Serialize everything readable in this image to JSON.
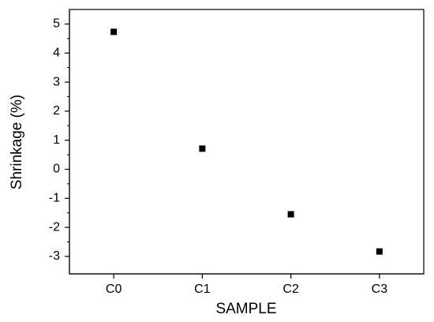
{
  "chart_data": {
    "type": "scatter",
    "x_label": "SAMPLE",
    "y_label": "Shrinkage (%)",
    "categories": [
      "C0",
      "C1",
      "C2",
      "C3"
    ],
    "values": [
      4.73,
      0.71,
      -1.55,
      -2.83
    ],
    "color": "#000000",
    "ylim": [
      -3.6,
      5.5
    ],
    "yticks": [
      -3,
      -2,
      -1,
      0,
      1,
      2,
      3,
      4,
      5
    ],
    "marker": "square"
  }
}
